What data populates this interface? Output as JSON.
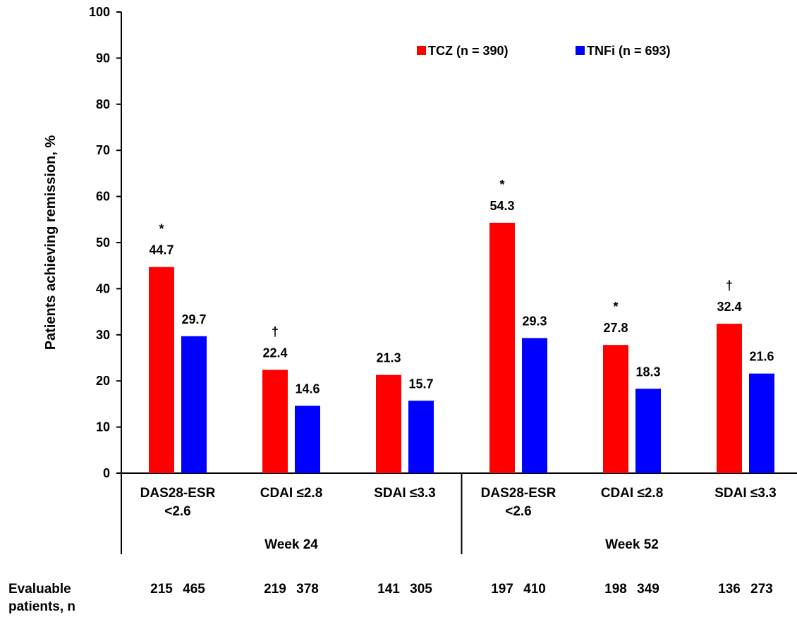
{
  "chart_data": {
    "type": "bar",
    "ylabel": "Patients achieving remission, %",
    "ylim": [
      0,
      100
    ],
    "yticks": [
      "0",
      "10",
      "20",
      "30",
      "40",
      "50",
      "60",
      "70",
      "80",
      "90",
      "100"
    ],
    "grid": false,
    "legend_position": "top-right",
    "groups": [
      "Week 24",
      "Week 52"
    ],
    "categories": [
      {
        "lines": [
          "DAS28-ESR",
          "<2.6"
        ],
        "group": 0
      },
      {
        "lines": [
          "CDAI ≤2.8"
        ],
        "group": 0
      },
      {
        "lines": [
          "SDAI ≤3.3"
        ],
        "group": 0
      },
      {
        "lines": [
          "DAS28-ESR",
          "<2.6"
        ],
        "group": 1
      },
      {
        "lines": [
          "CDAI ≤2.8"
        ],
        "group": 1
      },
      {
        "lines": [
          "SDAI ≤3.3"
        ],
        "group": 1
      }
    ],
    "series": [
      {
        "name": "TCZ (n = 390)",
        "color": "#ff0000",
        "values": [
          44.7,
          22.4,
          21.3,
          54.3,
          27.8,
          32.4
        ],
        "labels": [
          "44.7",
          "22.4",
          "21.3",
          "54.3",
          "27.8",
          "32.4"
        ]
      },
      {
        "name": "TNFi (n = 693)",
        "color": "#0000ff",
        "values": [
          29.7,
          14.6,
          15.7,
          29.3,
          18.3,
          21.6
        ],
        "labels": [
          "29.7",
          "14.6",
          "15.7",
          "29.3",
          "18.3",
          "21.6"
        ]
      }
    ],
    "significance_markers": [
      "*",
      "†",
      "",
      "*",
      "*",
      "†"
    ],
    "evaluable": {
      "label_lines": [
        "Evaluable",
        "patients, n"
      ],
      "values": [
        [
          "215",
          "465"
        ],
        [
          "219",
          "378"
        ],
        [
          "141",
          "305"
        ],
        [
          "197",
          "410"
        ],
        [
          "198",
          "349"
        ],
        [
          "136",
          "273"
        ]
      ]
    }
  }
}
